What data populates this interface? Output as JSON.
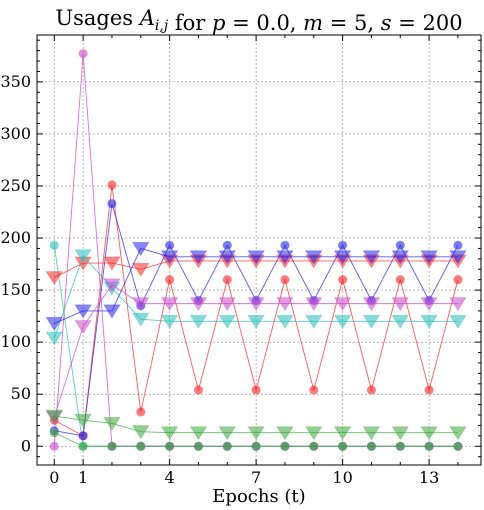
{
  "chart_data": {
    "type": "scatter",
    "title": "Usages A_{i,j} for p = 0.0, m = 5, s = 200",
    "title_parts": [
      {
        "text": "Usages ",
        "style": "normal"
      },
      {
        "text": "A",
        "style": "italic"
      },
      {
        "text": "i,j",
        "style": "sub-italic"
      },
      {
        "text": " for ",
        "style": "normal"
      },
      {
        "text": "p",
        "style": "italic"
      },
      {
        "text": " = 0.0, ",
        "style": "normal"
      },
      {
        "text": "m",
        "style": "italic"
      },
      {
        "text": " = 5, ",
        "style": "normal"
      },
      {
        "text": "s",
        "style": "italic"
      },
      {
        "text": " = 200",
        "style": "normal"
      }
    ],
    "xlabel": "Epochs (t)",
    "ylabel": "",
    "xlim": [
      -0.6,
      14.8
    ],
    "ylim": [
      -18,
      395
    ],
    "xticks": [
      0,
      1,
      4,
      7,
      10,
      13
    ],
    "yticks": [
      0,
      50,
      100,
      150,
      200,
      250,
      300,
      350
    ],
    "grid": true,
    "x": [
      0,
      1,
      2,
      3,
      4,
      5,
      6,
      7,
      8,
      9,
      10,
      11,
      12,
      13,
      14
    ],
    "series": [
      {
        "marker": "circle",
        "color": "#ff2222",
        "values": [
          25,
          10,
          251,
          33,
          160,
          54,
          160,
          54,
          160,
          54,
          160,
          54,
          160,
          54,
          160
        ]
      },
      {
        "marker": "circle",
        "color": "#22bbbb",
        "values": [
          193,
          0,
          0,
          0,
          0,
          0,
          0,
          0,
          0,
          0,
          0,
          0,
          0,
          0,
          0
        ]
      },
      {
        "marker": "circle",
        "color": "#2222ee",
        "values": [
          15,
          10,
          233,
          135,
          193,
          140,
          193,
          140,
          193,
          140,
          193,
          140,
          193,
          140,
          193
        ]
      },
      {
        "marker": "circle",
        "color": "#cc44cc",
        "values": [
          0,
          377,
          0,
          0,
          0,
          0,
          0,
          0,
          0,
          0,
          0,
          0,
          0,
          0,
          0
        ]
      },
      {
        "marker": "circle",
        "color": "#33aa33",
        "values": [
          13,
          0,
          0,
          0,
          0,
          0,
          0,
          0,
          0,
          0,
          0,
          0,
          0,
          0,
          0
        ]
      },
      {
        "marker": "triangle",
        "color": "#ff2222",
        "values": [
          162,
          176,
          176,
          170,
          178,
          178,
          178,
          178,
          178,
          178,
          178,
          178,
          178,
          178,
          178
        ]
      },
      {
        "marker": "triangle",
        "color": "#22bbbb",
        "values": [
          104,
          183,
          152,
          122,
          120,
          120,
          120,
          120,
          120,
          120,
          120,
          120,
          120,
          120,
          120
        ]
      },
      {
        "marker": "triangle",
        "color": "#2222ee",
        "values": [
          118,
          130,
          130,
          190,
          182,
          182,
          182,
          182,
          182,
          182,
          182,
          182,
          182,
          182,
          182
        ]
      },
      {
        "marker": "triangle",
        "color": "#cc44cc",
        "values": [
          28,
          115,
          155,
          137,
          137,
          137,
          137,
          137,
          137,
          137,
          137,
          137,
          137,
          137,
          137
        ]
      },
      {
        "marker": "triangle",
        "color": "#33aa33",
        "values": [
          29,
          25,
          22,
          14,
          13,
          13,
          13,
          13,
          13,
          13,
          13,
          13,
          13,
          13,
          13
        ]
      }
    ]
  }
}
